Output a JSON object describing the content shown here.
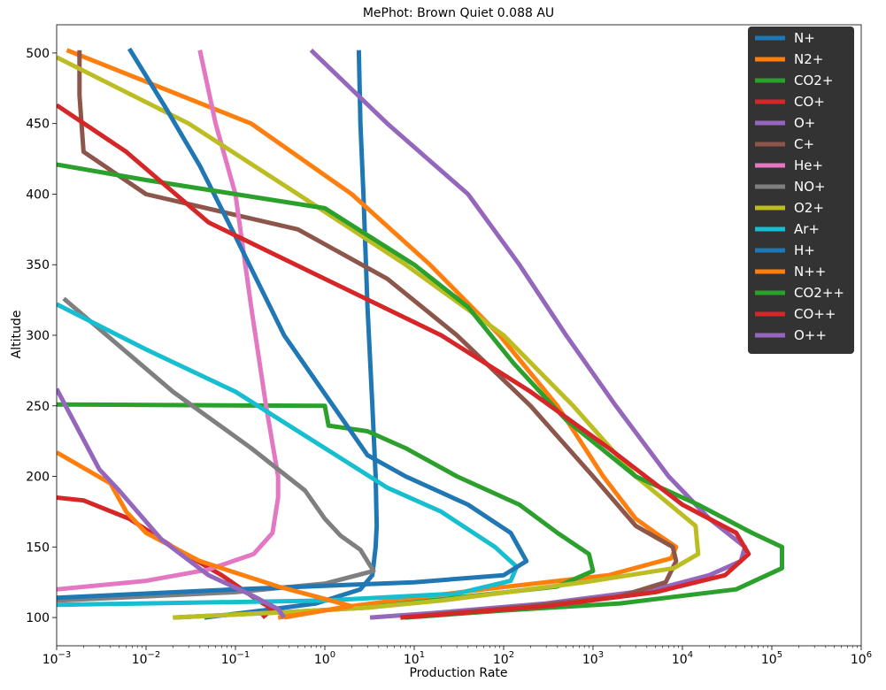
{
  "chart_data": {
    "type": "line",
    "title": "MePhot: Brown Quiet 0.088 AU",
    "xlabel": "Production Rate",
    "ylabel": "Altitude",
    "x_scale": "log",
    "xlim": [
      0.001,
      1000000
    ],
    "ylim": [
      80,
      520
    ],
    "x_ticks": [
      {
        "base": "10",
        "exp": "−3"
      },
      {
        "base": "10",
        "exp": "−2"
      },
      {
        "base": "10",
        "exp": "−1"
      },
      {
        "base": "10",
        "exp": "0"
      },
      {
        "base": "10",
        "exp": "1"
      },
      {
        "base": "10",
        "exp": "2"
      },
      {
        "base": "10",
        "exp": "3"
      },
      {
        "base": "10",
        "exp": "4"
      },
      {
        "base": "10",
        "exp": "5"
      },
      {
        "base": "10",
        "exp": "6"
      }
    ],
    "y_ticks": [
      "100",
      "150",
      "200",
      "250",
      "300",
      "350",
      "400",
      "450",
      "500"
    ],
    "legend_position": "top-right",
    "series": [
      {
        "name": "N+",
        "color": "#1f77b4",
        "points": [
          [
            0.045,
            100
          ],
          [
            0.2,
            105
          ],
          [
            0.8,
            110
          ],
          [
            2.5,
            120
          ],
          [
            3.4,
            130
          ],
          [
            3.7,
            150
          ],
          [
            3.8,
            165
          ],
          [
            3.7,
            200
          ],
          [
            3.4,
            250
          ],
          [
            3.0,
            320
          ],
          [
            2.7,
            400
          ],
          [
            2.5,
            450
          ],
          [
            2.4,
            502
          ]
        ]
      },
      {
        "name": "N2+",
        "color": "#ff7f0e",
        "points": [
          [
            0.35,
            100
          ],
          [
            1.5,
            107
          ],
          [
            6,
            112
          ],
          [
            60,
            120
          ],
          [
            1500,
            130
          ],
          [
            7500,
            142
          ],
          [
            8500,
            150
          ],
          [
            5000,
            160
          ],
          [
            3000,
            170
          ],
          [
            1300,
            200
          ],
          [
            400,
            250
          ],
          [
            90,
            300
          ],
          [
            15,
            350
          ],
          [
            2,
            400
          ],
          [
            0.15,
            450
          ],
          [
            0.0013,
            502
          ]
        ]
      },
      {
        "name": "CO2+",
        "color": "#2ca02c",
        "points": [
          [
            0.02,
            100
          ],
          [
            0.4,
            104
          ],
          [
            3,
            107
          ],
          [
            15,
            112
          ],
          [
            400,
            122
          ],
          [
            1000,
            133
          ],
          [
            900,
            145
          ],
          [
            400,
            160
          ],
          [
            150,
            180
          ],
          [
            30,
            200
          ],
          [
            8,
            220
          ],
          [
            3,
            232
          ],
          [
            1.1,
            236
          ],
          [
            1.0,
            250
          ],
          [
            0.001,
            251
          ]
        ]
      },
      {
        "name": "CO+",
        "color": "#d62728",
        "points": [
          [
            0.2,
            100
          ],
          [
            0.26,
            106
          ],
          [
            0.18,
            112
          ],
          [
            0.07,
            130
          ],
          [
            0.02,
            150
          ],
          [
            0.0065,
            170
          ],
          [
            0.002,
            183
          ],
          [
            0.001,
            185
          ]
        ]
      },
      {
        "name": "O+",
        "color": "#9467bd",
        "points": [
          [
            3.2,
            100
          ],
          [
            15,
            103
          ],
          [
            300,
            110
          ],
          [
            5000,
            120
          ],
          [
            20000,
            130
          ],
          [
            45000,
            140
          ],
          [
            50000,
            150
          ],
          [
            20000,
            170
          ],
          [
            7000,
            200
          ],
          [
            1800,
            250
          ],
          [
            500,
            300
          ],
          [
            150,
            350
          ],
          [
            40,
            400
          ],
          [
            5,
            450
          ],
          [
            0.7,
            502
          ]
        ]
      },
      {
        "name": "C+",
        "color": "#8c564b",
        "points": [
          [
            7,
            100
          ],
          [
            25,
            103
          ],
          [
            200,
            108
          ],
          [
            2000,
            115
          ],
          [
            6500,
            125
          ],
          [
            8500,
            140
          ],
          [
            7800,
            150
          ],
          [
            3000,
            165
          ],
          [
            1000,
            200
          ],
          [
            200,
            250
          ],
          [
            30,
            300
          ],
          [
            5,
            340
          ],
          [
            0.5,
            375
          ],
          [
            0.01,
            400
          ],
          [
            0.002,
            430
          ],
          [
            0.0018,
            470
          ],
          [
            0.0018,
            502
          ]
        ]
      },
      {
        "name": "He+",
        "color": "#e377c2",
        "points": [
          [
            0.001,
            120
          ],
          [
            0.01,
            126
          ],
          [
            0.05,
            134
          ],
          [
            0.16,
            145
          ],
          [
            0.26,
            160
          ],
          [
            0.3,
            185
          ],
          [
            0.3,
            200
          ],
          [
            0.22,
            250
          ],
          [
            0.15,
            320
          ],
          [
            0.1,
            400
          ],
          [
            0.06,
            450
          ],
          [
            0.04,
            502
          ]
        ]
      },
      {
        "name": "NO+",
        "color": "#7f7f7f",
        "points": [
          [
            0.001,
            112
          ],
          [
            0.1,
            118
          ],
          [
            1,
            124
          ],
          [
            3.5,
            133
          ],
          [
            2.5,
            148
          ],
          [
            1.5,
            158
          ],
          [
            1,
            170
          ],
          [
            0.6,
            190
          ],
          [
            0.15,
            220
          ],
          [
            0.02,
            260
          ],
          [
            0.0012,
            326
          ]
        ]
      },
      {
        "name": "O2+",
        "color": "#bcbd22",
        "points": [
          [
            0.02,
            100
          ],
          [
            0.4,
            104
          ],
          [
            3,
            107
          ],
          [
            20,
            112
          ],
          [
            800,
            125
          ],
          [
            8000,
            135
          ],
          [
            15000,
            145
          ],
          [
            14000,
            165
          ],
          [
            3000,
            200
          ],
          [
            600,
            250
          ],
          [
            100,
            300
          ],
          [
            8,
            350
          ],
          [
            0.5,
            400
          ],
          [
            0.03,
            450
          ],
          [
            0.001,
            497
          ]
        ]
      },
      {
        "name": "Ar+",
        "color": "#17becf",
        "points": [
          [
            0.001,
            109
          ],
          [
            1,
            112
          ],
          [
            30,
            117
          ],
          [
            120,
            126
          ],
          [
            140,
            136
          ],
          [
            80,
            150
          ],
          [
            20,
            175
          ],
          [
            5,
            192
          ],
          [
            1,
            220
          ],
          [
            0.1,
            260
          ],
          [
            0.01,
            290
          ],
          [
            0.001,
            322
          ]
        ]
      },
      {
        "name": "H+",
        "color": "#1f77b4",
        "points": [
          [
            0.001,
            114
          ],
          [
            0.1,
            120
          ],
          [
            10,
            125
          ],
          [
            100,
            130
          ],
          [
            180,
            140
          ],
          [
            120,
            160
          ],
          [
            40,
            180
          ],
          [
            8,
            200
          ],
          [
            3,
            215
          ],
          [
            0.35,
            300
          ],
          [
            0.1,
            370
          ],
          [
            0.04,
            420
          ],
          [
            0.017,
            460
          ],
          [
            0.0065,
            503
          ]
        ]
      },
      {
        "name": "N++",
        "color": "#ff7f0e",
        "points": [
          [
            0.3,
            100
          ],
          [
            0.8,
            104
          ],
          [
            2,
            108
          ],
          [
            0.9,
            114
          ],
          [
            0.3,
            122
          ],
          [
            0.04,
            140
          ],
          [
            0.01,
            160
          ],
          [
            0.006,
            175
          ],
          [
            0.004,
            195
          ],
          [
            0.001,
            217
          ]
        ]
      },
      {
        "name": "CO2++",
        "color": "#2ca02c",
        "points": [
          [
            8,
            100
          ],
          [
            100,
            105
          ],
          [
            2000,
            110
          ],
          [
            40000,
            120
          ],
          [
            130000,
            135
          ],
          [
            130000,
            150
          ],
          [
            60000,
            160
          ],
          [
            15000,
            180
          ],
          [
            3000,
            200
          ],
          [
            500,
            240
          ],
          [
            130,
            280
          ],
          [
            40,
            320
          ],
          [
            10,
            350
          ],
          [
            1,
            390
          ],
          [
            0.01,
            410
          ],
          [
            0.001,
            421
          ]
        ]
      },
      {
        "name": "CO++",
        "color": "#d62728",
        "points": [
          [
            7,
            100
          ],
          [
            30,
            103
          ],
          [
            300,
            108
          ],
          [
            5000,
            118
          ],
          [
            30000,
            130
          ],
          [
            55000,
            145
          ],
          [
            40000,
            160
          ],
          [
            10000,
            180
          ],
          [
            1500,
            220
          ],
          [
            200,
            260
          ],
          [
            20,
            300
          ],
          [
            1,
            340
          ],
          [
            0.05,
            380
          ],
          [
            0.006,
            430
          ],
          [
            0.001,
            463
          ]
        ]
      },
      {
        "name": "O++",
        "color": "#9467bd",
        "points": [
          [
            0.35,
            100
          ],
          [
            0.3,
            106
          ],
          [
            0.15,
            116
          ],
          [
            0.05,
            130
          ],
          [
            0.015,
            155
          ],
          [
            0.008,
            175
          ],
          [
            0.005,
            190
          ],
          [
            0.003,
            205
          ],
          [
            0.001,
            262
          ]
        ]
      }
    ]
  }
}
